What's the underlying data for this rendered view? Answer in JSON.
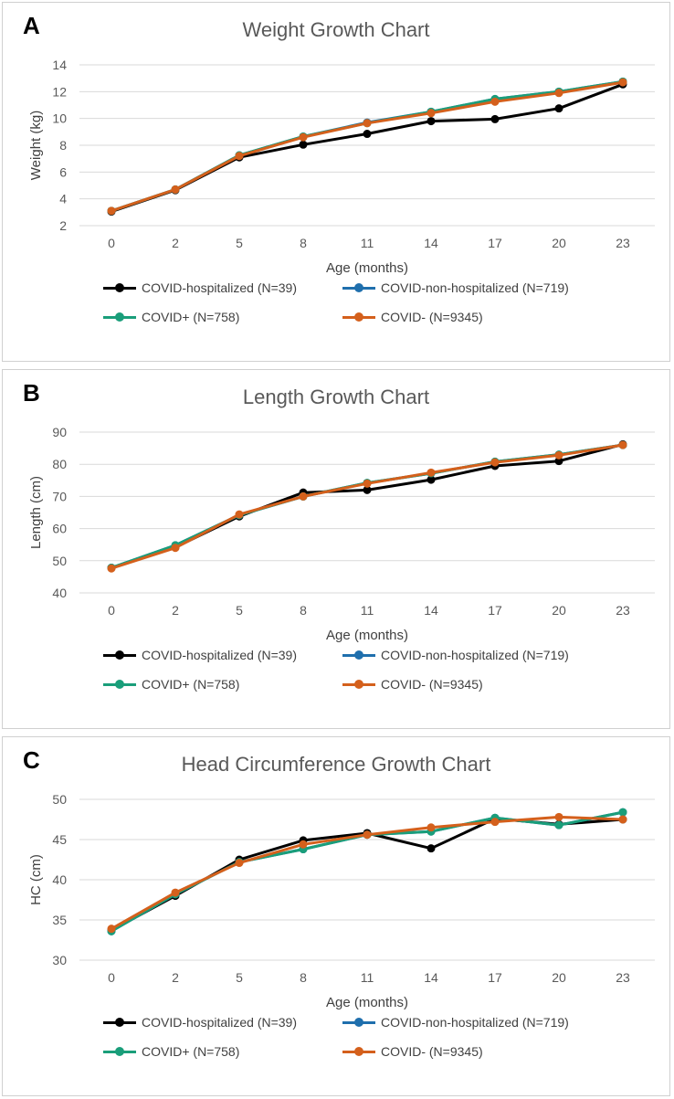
{
  "legend": [
    {
      "label": "COVID-hospitalized (N=39)",
      "color": "#000000"
    },
    {
      "label": "COVID-non-hospitalized (N=719)",
      "color": "#1f6fad"
    },
    {
      "label": "COVID+ (N=758)",
      "color": "#1a9e7a"
    },
    {
      "label": "COVID- (N=9345)",
      "color": "#d4601c"
    }
  ],
  "panels": [
    {
      "letter": "A",
      "title": "Weight Growth Chart"
    },
    {
      "letter": "B",
      "title": "Length Growth Chart"
    },
    {
      "letter": "C",
      "title": "Head Circumference Growth Chart"
    }
  ],
  "chart_data": [
    {
      "type": "line",
      "title": "Weight Growth Chart",
      "xlabel": "Age (months)",
      "ylabel": "Weight (kg)",
      "categories": [
        "0",
        "2",
        "5",
        "8",
        "11",
        "14",
        "17",
        "20",
        "23"
      ],
      "ylim": [
        2,
        14
      ],
      "yticks": [
        2,
        4,
        6,
        8,
        10,
        12,
        14
      ],
      "series": [
        {
          "name": "COVID-hospitalized (N=39)",
          "color": "#000000",
          "values": [
            3.05,
            4.65,
            7.1,
            8.05,
            8.85,
            9.8,
            9.95,
            10.75,
            12.55
          ]
        },
        {
          "name": "COVID-non-hospitalized (N=719)",
          "color": "#1f6fad",
          "values": [
            3.1,
            4.7,
            7.25,
            8.65,
            9.7,
            10.5,
            11.45,
            12.0,
            12.75
          ]
        },
        {
          "name": "COVID+ (N=758)",
          "color": "#1a9e7a",
          "values": [
            3.1,
            4.7,
            7.25,
            8.65,
            9.65,
            10.5,
            11.45,
            12.0,
            12.75
          ]
        },
        {
          "name": "COVID- (N=9345)",
          "color": "#d4601c",
          "values": [
            3.1,
            4.7,
            7.2,
            8.6,
            9.65,
            10.4,
            11.25,
            11.9,
            12.7
          ]
        }
      ]
    },
    {
      "type": "line",
      "title": "Length Growth Chart",
      "xlabel": "Age (months)",
      "ylabel": "Length (cm)",
      "categories": [
        "0",
        "2",
        "5",
        "8",
        "11",
        "14",
        "17",
        "20",
        "23"
      ],
      "ylim": [
        40,
        90
      ],
      "yticks": [
        40,
        50,
        60,
        70,
        80,
        90
      ],
      "series": [
        {
          "name": "COVID-hospitalized (N=39)",
          "color": "#000000",
          "values": [
            47.8,
            54.2,
            63.8,
            71.2,
            72.0,
            75.2,
            79.5,
            81.0,
            86.2
          ]
        },
        {
          "name": "COVID-non-hospitalized (N=719)",
          "color": "#1f6fad",
          "values": [
            47.8,
            54.8,
            64.2,
            70.0,
            74.2,
            77.2,
            80.8,
            83.0,
            86.0
          ]
        },
        {
          "name": "COVID+ (N=758)",
          "color": "#1a9e7a",
          "values": [
            47.8,
            54.8,
            64.2,
            70.0,
            74.2,
            77.2,
            80.8,
            83.0,
            86.0
          ]
        },
        {
          "name": "COVID- (N=9345)",
          "color": "#d4601c",
          "values": [
            47.6,
            54.0,
            64.4,
            70.0,
            74.0,
            77.4,
            80.6,
            82.8,
            86.0
          ]
        }
      ]
    },
    {
      "type": "line",
      "title": "Head Circumference Growth Chart",
      "xlabel": "Age (months)",
      "ylabel": "HC (cm)",
      "categories": [
        "0",
        "2",
        "5",
        "8",
        "11",
        "14",
        "17",
        "20",
        "23"
      ],
      "ylim": [
        30,
        50
      ],
      "yticks": [
        30,
        35,
        40,
        45,
        50
      ],
      "series": [
        {
          "name": "COVID-hospitalized (N=39)",
          "color": "#000000",
          "values": [
            33.7,
            38.0,
            42.5,
            44.9,
            45.8,
            43.9,
            47.6,
            46.9,
            47.5
          ]
        },
        {
          "name": "COVID-non-hospitalized (N=719)",
          "color": "#1f6fad",
          "values": [
            33.6,
            38.2,
            42.2,
            43.8,
            45.6,
            46.0,
            47.7,
            46.8,
            48.4
          ]
        },
        {
          "name": "COVID+ (N=758)",
          "color": "#1a9e7a",
          "values": [
            33.6,
            38.2,
            42.2,
            43.8,
            45.6,
            46.0,
            47.7,
            46.8,
            48.4
          ]
        },
        {
          "name": "COVID- (N=9345)",
          "color": "#d4601c",
          "values": [
            33.9,
            38.4,
            42.1,
            44.4,
            45.6,
            46.5,
            47.2,
            47.8,
            47.5
          ]
        }
      ]
    }
  ]
}
